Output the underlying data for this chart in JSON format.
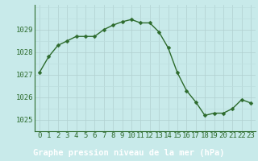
{
  "x": [
    0,
    1,
    2,
    3,
    4,
    5,
    6,
    7,
    8,
    9,
    10,
    11,
    12,
    13,
    14,
    15,
    16,
    17,
    18,
    19,
    20,
    21,
    22,
    23
  ],
  "y": [
    1027.1,
    1027.8,
    1028.3,
    1028.5,
    1028.7,
    1028.7,
    1028.7,
    1029.0,
    1029.2,
    1029.35,
    1029.45,
    1029.3,
    1029.3,
    1028.9,
    1028.2,
    1027.1,
    1026.3,
    1025.8,
    1025.2,
    1025.3,
    1025.3,
    1025.5,
    1025.9,
    1025.75
  ],
  "line_color": "#2d6b2d",
  "marker": "D",
  "marker_size": 2.5,
  "bg_color": "#c8eaea",
  "grid_color": "#b0d0d0",
  "grid_minor_color": "#bcdede",
  "ylabel_ticks": [
    1025,
    1026,
    1027,
    1028,
    1029
  ],
  "ylim": [
    1024.5,
    1030.1
  ],
  "xlim": [
    -0.5,
    23.5
  ],
  "xlabel": "Graphe pression niveau de la mer (hPa)",
  "xlabel_fontsize": 7.5,
  "tick_fontsize": 6.5,
  "axis_color": "#2d6b2d",
  "border_color": "#2d6b2d",
  "label_bg_color": "#3a7a3a",
  "label_text_color": "#ffffff"
}
